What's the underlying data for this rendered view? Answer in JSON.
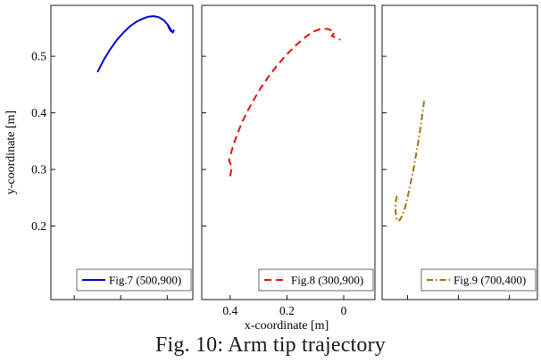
{
  "figure": {
    "caption": "Fig. 10: Arm tip trajectory",
    "background": "#ffffff"
  },
  "axes": {
    "ylabel": "y-coordinate [m]",
    "xlabel": "x-coordinate [m]",
    "y_ticks": [
      0.2,
      0.3,
      0.4,
      0.5
    ],
    "y_tick_labels": [
      "0.2",
      "0.3",
      "0.4",
      "0.5"
    ],
    "x_ticks": [
      0.4,
      0.2,
      0
    ],
    "x_tick_labels": [
      "0.4",
      "0.2",
      "0"
    ],
    "ylim": [
      0.07,
      0.59
    ],
    "xlim": [
      0.5,
      -0.11
    ],
    "grid": false,
    "legend_position": "bottom-right-inside"
  },
  "chart_data": [
    {
      "type": "line",
      "name": "Fig.7 (500,900)",
      "color": "#0000cc",
      "line_style": "solid",
      "x": [
        0.3,
        0.272,
        0.244,
        0.216,
        0.188,
        0.16,
        0.133,
        0.107,
        0.082,
        0.058,
        0.036,
        0.016,
        -0.002,
        -0.01,
        -0.004,
        -0.016,
        -0.01,
        -0.024,
        -0.03
      ],
      "y": [
        0.472,
        0.494,
        0.513,
        0.529,
        0.542,
        0.553,
        0.561,
        0.566,
        0.57,
        0.571,
        0.569,
        0.564,
        0.556,
        0.548,
        0.555,
        0.544,
        0.551,
        0.542,
        0.547
      ]
    },
    {
      "type": "line",
      "name": "Fig.8 (300,900)",
      "color": "#e01010",
      "line_style": "dashed",
      "x": [
        0.4,
        0.394,
        0.404,
        0.397,
        0.388,
        0.376,
        0.36,
        0.34,
        0.317,
        0.291,
        0.262,
        0.231,
        0.199,
        0.167,
        0.135,
        0.105,
        0.077,
        0.052,
        0.032,
        0.042,
        0.024,
        0.012
      ],
      "y": [
        0.288,
        0.304,
        0.316,
        0.329,
        0.344,
        0.361,
        0.381,
        0.402,
        0.423,
        0.445,
        0.466,
        0.486,
        0.504,
        0.52,
        0.534,
        0.544,
        0.549,
        0.548,
        0.542,
        0.536,
        0.532,
        0.529
      ]
    },
    {
      "type": "line",
      "name": "Fig.9 (700,400)",
      "color": "#9b7410",
      "line_style": "dash-dot",
      "x": [
        0.335,
        0.34,
        0.345,
        0.351,
        0.357,
        0.364,
        0.371,
        0.378,
        0.386,
        0.394,
        0.402,
        0.41,
        0.418,
        0.426,
        0.432,
        0.438,
        0.443,
        0.446,
        0.448,
        0.446,
        0.442,
        0.437
      ],
      "y": [
        0.421,
        0.404,
        0.387,
        0.369,
        0.351,
        0.333,
        0.315,
        0.297,
        0.28,
        0.263,
        0.247,
        0.232,
        0.222,
        0.214,
        0.21,
        0.209,
        0.212,
        0.221,
        0.233,
        0.245,
        0.252,
        0.246
      ]
    }
  ]
}
